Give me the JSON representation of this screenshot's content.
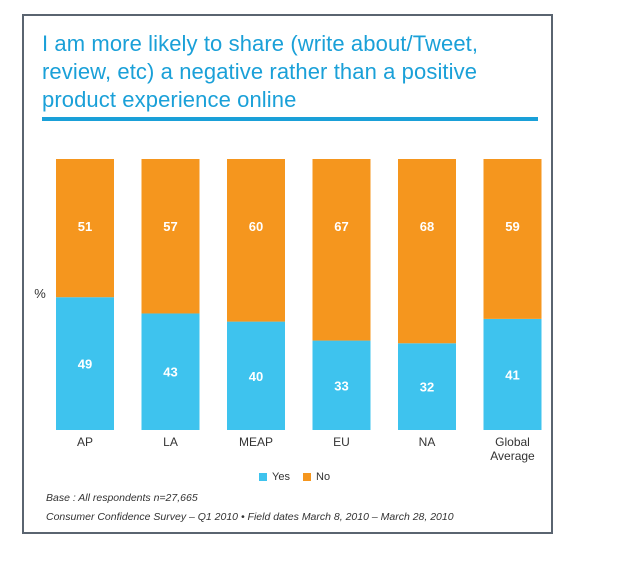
{
  "title": "I am more likely to share (write about/Tweet, review, etc) a negative rather than a positive product experience online",
  "colors": {
    "yes": "#3ec3ee",
    "no": "#f5961e",
    "accent": "#1aa0d8"
  },
  "chart_data": {
    "type": "bar",
    "stacked": true,
    "ylabel": "%",
    "ylim": [
      0,
      100
    ],
    "categories": [
      "AP",
      "LA",
      "MEAP",
      "EU",
      "NA",
      "Global Average"
    ],
    "series": [
      {
        "name": "Yes",
        "values": [
          49,
          43,
          40,
          33,
          32,
          41
        ]
      },
      {
        "name": "No",
        "values": [
          51,
          57,
          60,
          67,
          68,
          59
        ]
      }
    ],
    "legend": "bottom",
    "grid": false
  },
  "footnotes": {
    "base": "Base : All respondents n=27,665",
    "survey": "Consumer Confidence Survey – Q1 2010 • Field dates March 8, 2010 – March 28, 2010"
  }
}
